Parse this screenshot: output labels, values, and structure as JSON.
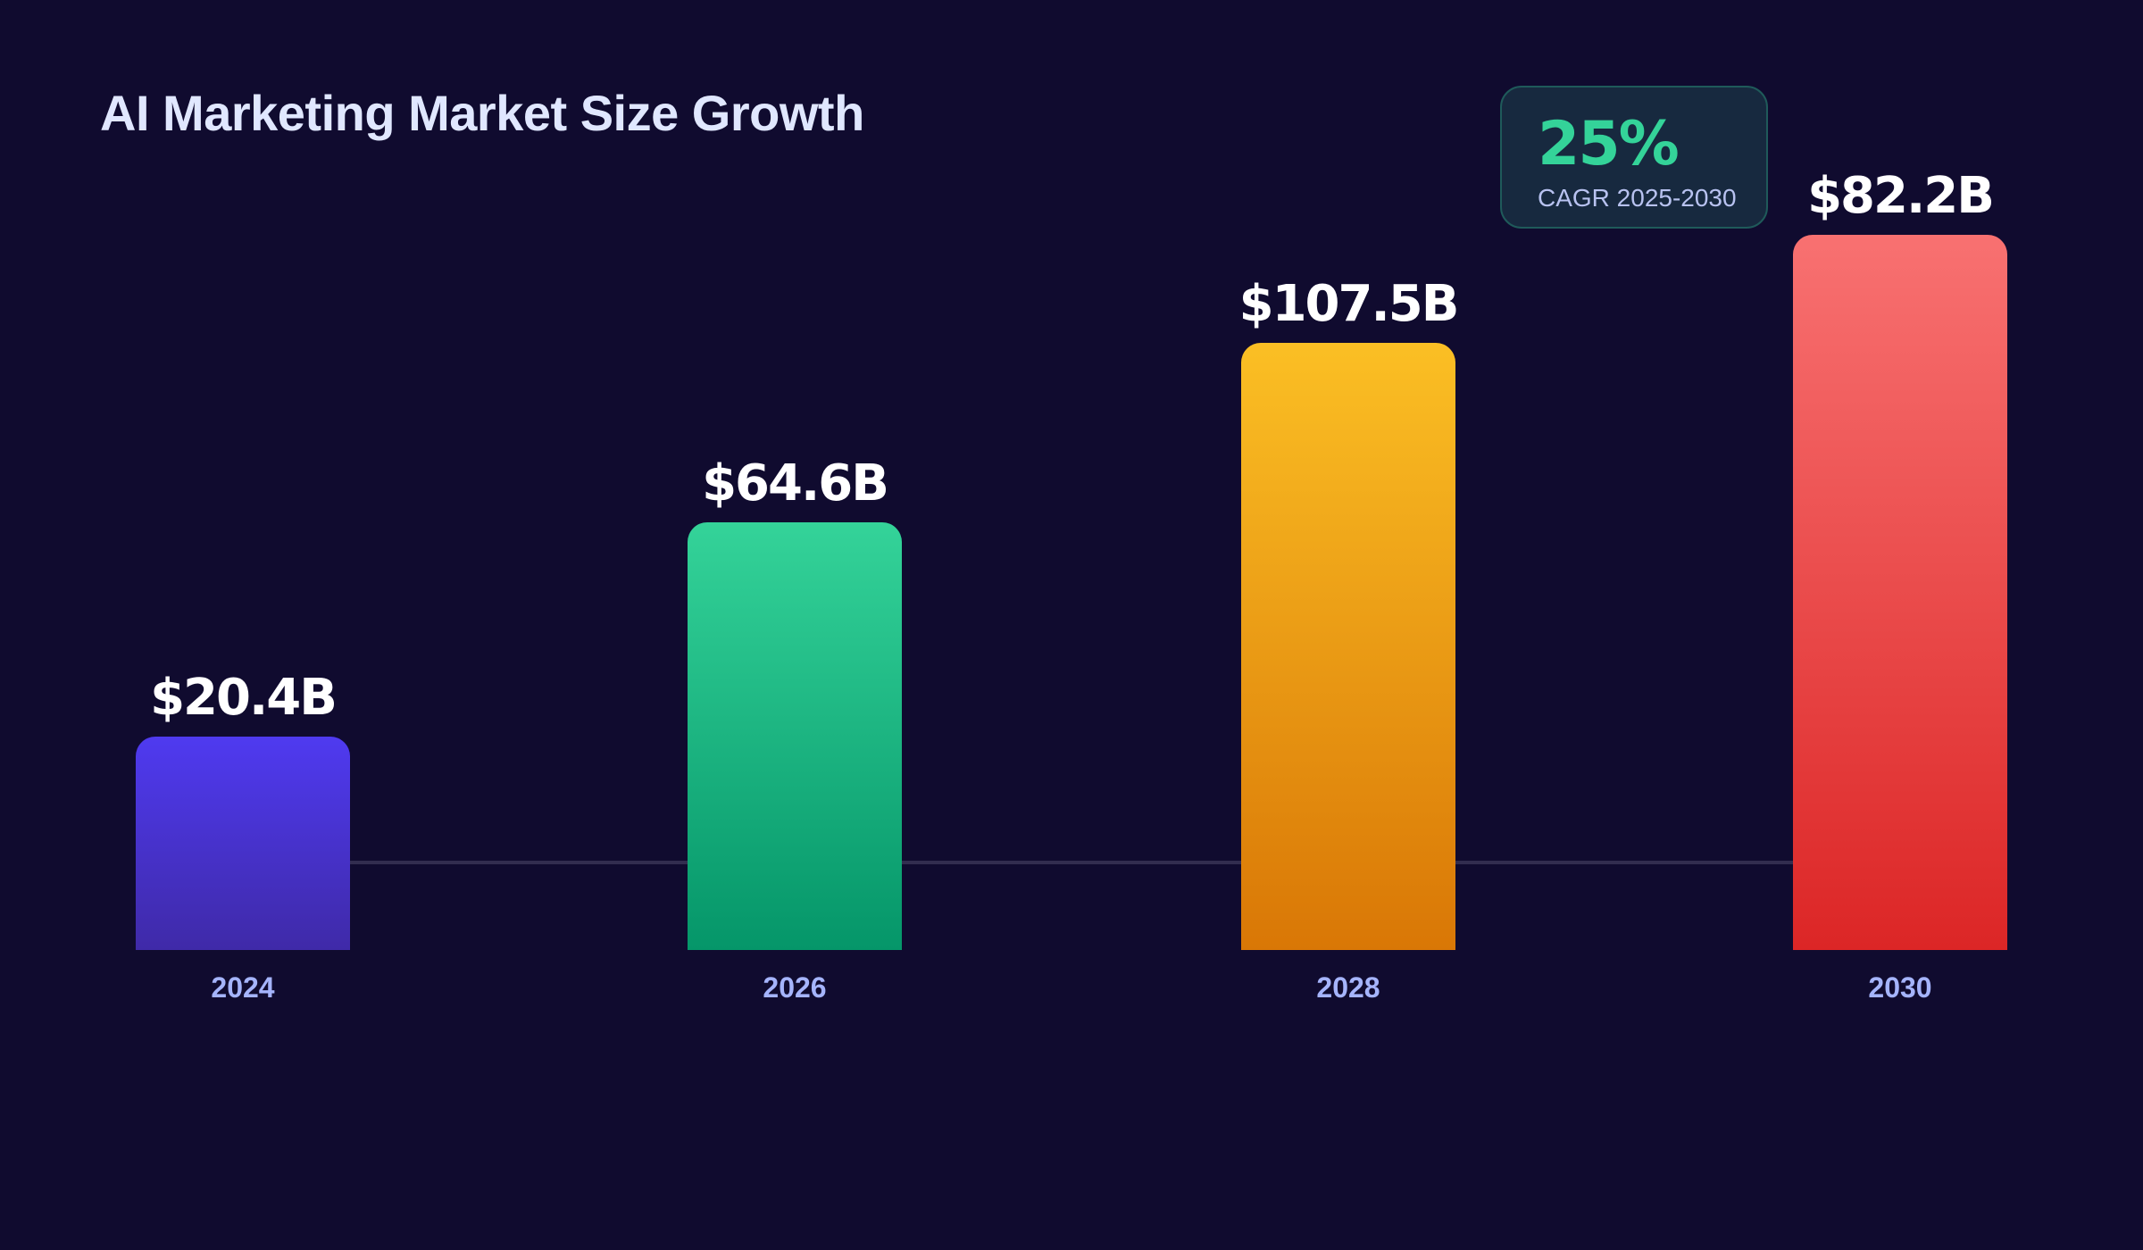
{
  "chart_data": {
    "type": "bar",
    "title": "AI Marketing Market Size Growth",
    "categories": [
      "2024",
      "2026",
      "2028",
      "2030"
    ],
    "values": [
      20.4,
      64.6,
      107.5,
      82.2
    ],
    "value_labels": [
      "$20.4B",
      "$64.6B",
      "$107.5B",
      "$82.2B"
    ],
    "unit": "$B",
    "colors": [
      [
        "#4f3af0",
        "#3f2aa8"
      ],
      [
        "#34d399",
        "#059669"
      ],
      [
        "#fbbf24",
        "#d97706"
      ],
      [
        "#f87171",
        "#dc2626"
      ]
    ],
    "grid": false,
    "callout": {
      "value": "25%",
      "label": "CAGR 2025-2030",
      "color": "#34d399"
    }
  }
}
